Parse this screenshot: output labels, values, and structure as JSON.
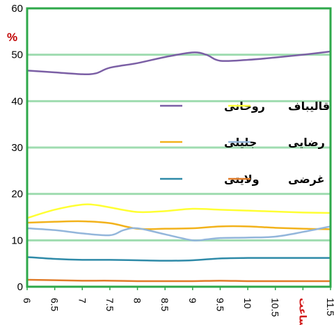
{
  "chart_data": {
    "type": "line",
    "unit_label": "%",
    "ylim": [
      0,
      60
    ],
    "yticks": [
      "0",
      "10",
      "20",
      "30",
      "40",
      "50",
      "60"
    ],
    "x_tick_labels": [
      "6",
      "6.5",
      "7",
      "7.5",
      "8",
      "8.5",
      "9",
      "9.5",
      "10",
      "10.5",
      "ساعت",
      "11.5"
    ],
    "x_tick_highlight_index": 10,
    "xlim": [
      6,
      11.5
    ],
    "grid": true,
    "colors": {
      "grid": "#9fdcb0",
      "frame": "#2ea84a"
    },
    "series": [
      {
        "name": "روحانی",
        "color": "#7b5fa5",
        "x": [
          6,
          6.5,
          7,
          7.25,
          7.5,
          8,
          8.5,
          9,
          9.25,
          9.5,
          10,
          10.5,
          11,
          11.5
        ],
        "y": [
          46.6,
          46.2,
          45.8,
          46.0,
          47.2,
          48.2,
          49.5,
          50.5,
          50.0,
          48.7,
          48.9,
          49.4,
          50.0,
          50.7
        ]
      },
      {
        "name": "قالیباف",
        "color": "#ffff33",
        "x": [
          6,
          6.5,
          7,
          7.25,
          7.5,
          8,
          8.5,
          9,
          9.5,
          10,
          10.5,
          11,
          11.5
        ],
        "y": [
          14.8,
          16.6,
          17.7,
          17.6,
          17.1,
          16.1,
          16.3,
          16.8,
          16.6,
          16.4,
          16.2,
          16.0,
          15.9
        ]
      },
      {
        "name": "جلیلی",
        "color": "#f2b21b",
        "x": [
          6,
          6.5,
          7,
          7.5,
          8,
          8.5,
          9,
          9.5,
          10,
          10.5,
          11,
          11.5
        ],
        "y": [
          13.8,
          14.0,
          14.1,
          13.7,
          12.5,
          12.5,
          12.6,
          13.0,
          13.0,
          12.7,
          12.5,
          12.4
        ]
      },
      {
        "name": "رضایی",
        "color": "#93b6db",
        "x": [
          6,
          6.5,
          7,
          7.5,
          7.75,
          8,
          8.5,
          9,
          9.25,
          9.5,
          10,
          10.5,
          11,
          11.5
        ],
        "y": [
          12.6,
          12.2,
          11.5,
          11.1,
          12.2,
          12.6,
          11.3,
          10.0,
          10.2,
          10.5,
          10.6,
          10.8,
          11.8,
          13.0
        ]
      },
      {
        "name": "ولایتی",
        "color": "#2e8aa8",
        "x": [
          6,
          6.5,
          7,
          7.5,
          8,
          8.5,
          9,
          9.5,
          10,
          10.5,
          11,
          11.5
        ],
        "y": [
          6.4,
          6.0,
          5.8,
          5.8,
          5.7,
          5.6,
          5.7,
          6.1,
          6.2,
          6.2,
          6.2,
          6.2
        ]
      },
      {
        "name": "غرضی",
        "color": "#e07b28",
        "x": [
          6,
          6.5,
          7,
          7.5,
          8,
          8.5,
          9,
          9.5,
          10,
          10.5,
          11,
          11.5
        ],
        "y": [
          1.5,
          1.4,
          1.3,
          1.3,
          1.2,
          1.2,
          1.2,
          1.3,
          1.2,
          1.2,
          1.2,
          1.2
        ]
      }
    ],
    "legend": {
      "placement": "center",
      "columns": 2,
      "order": [
        "روحانی",
        "قالیباف",
        "جلیلی",
        "رضایی",
        "ولایتی",
        "غرضی"
      ]
    }
  }
}
